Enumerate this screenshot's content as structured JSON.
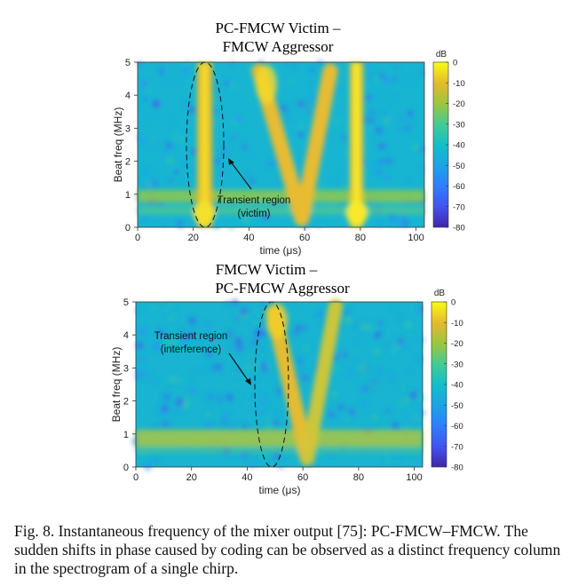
{
  "caption": "Fig. 8.  Instantaneous frequency of the mixer output [75]: PC-FMCW–FMCW. The sudden shifts in phase caused by coding can be observed as a distinct frequency column in the spectrogram of a single chirp.",
  "chart_data": [
    {
      "type": "heatmap",
      "title_lines": [
        "PC-FMCW Victim –",
        "FMCW Aggressor"
      ],
      "xlabel": "time (μs)",
      "ylabel": "Beat freq (MHz)",
      "xlim": [
        0,
        103
      ],
      "ylim": [
        0,
        5
      ],
      "xticks": [
        0,
        20,
        40,
        60,
        80,
        100
      ],
      "yticks": [
        0,
        1,
        2,
        3,
        4,
        5
      ],
      "colorbar": {
        "label": "dB",
        "range": [
          -80,
          0
        ],
        "ticks": [
          0,
          -10,
          -20,
          -30,
          -40,
          -50,
          -60,
          -70,
          -80
        ]
      },
      "features": [
        {
          "kind": "horizontal-band",
          "freq_mhz": 0.85,
          "db": -20
        },
        {
          "kind": "horizontal-band",
          "freq_mhz": 0.45,
          "db": -25
        },
        {
          "kind": "vertical-column",
          "time_us": 24,
          "db": -8
        },
        {
          "kind": "vertical-column",
          "time_us": 78.5,
          "db": -5
        },
        {
          "kind": "chirp-down",
          "from": [
            44,
            4.8
          ],
          "to": [
            59,
            0.3
          ],
          "db": -10
        },
        {
          "kind": "chirp-up",
          "from": [
            59,
            0.3
          ],
          "to": [
            69,
            4.8
          ],
          "db": -10
        }
      ],
      "annotation": {
        "lines": [
          "Transient region",
          "(victim)"
        ],
        "region_center_us": 24
      }
    },
    {
      "type": "heatmap",
      "title_lines": [
        "FMCW Victim –",
        "PC-FMCW Aggressor"
      ],
      "xlabel": "time (μs)",
      "ylabel": "Beat freq (MHz)",
      "xlim": [
        0,
        103
      ],
      "ylim": [
        0,
        5
      ],
      "xticks": [
        0,
        20,
        40,
        60,
        80,
        100
      ],
      "yticks": [
        0,
        1,
        2,
        3,
        4,
        5
      ],
      "colorbar": {
        "label": "dB",
        "range": [
          -80,
          0
        ],
        "ticks": [
          0,
          -10,
          -20,
          -30,
          -40,
          -50,
          -60,
          -70,
          -80
        ]
      },
      "features": [
        {
          "kind": "horizontal-band",
          "freq_mhz": 0.85,
          "db": -20
        },
        {
          "kind": "chirp-down",
          "from": [
            49,
            4.7
          ],
          "to": [
            61,
            0.3
          ],
          "db": -10
        },
        {
          "kind": "chirp-up",
          "from": [
            61,
            0.3
          ],
          "to": [
            72,
            4.8
          ],
          "db": -12
        },
        {
          "kind": "transient-patch",
          "time_us": 61,
          "db": -20
        }
      ],
      "annotation": {
        "lines": [
          "Transient region",
          "(interference)"
        ],
        "region_center_us": 49
      }
    }
  ]
}
